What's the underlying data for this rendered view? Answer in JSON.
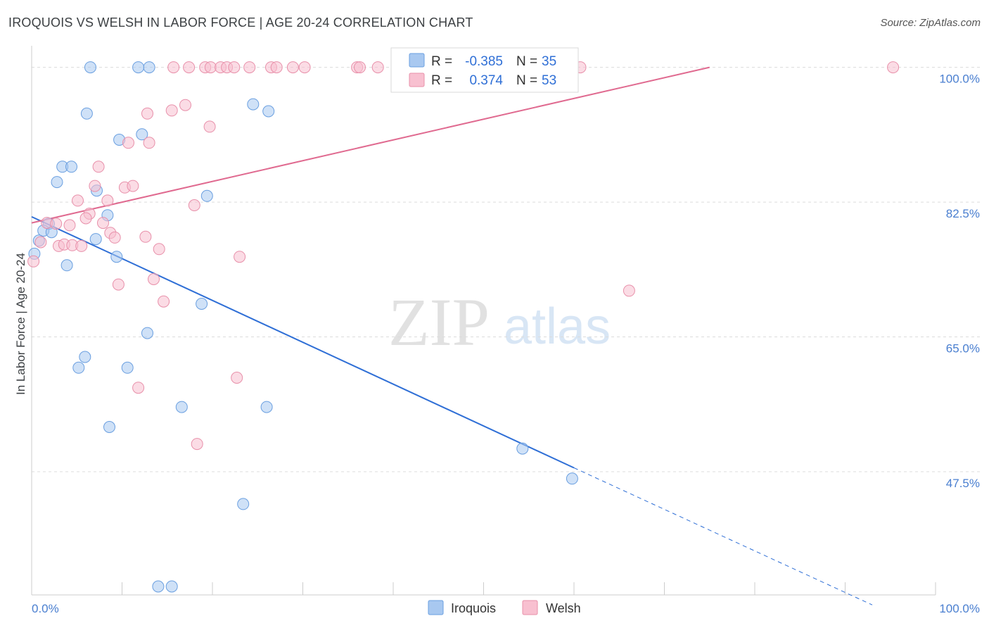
{
  "chart_data": {
    "type": "scatter",
    "title": "IROQUOIS VS WELSH IN LABOR FORCE | AGE 20-24 CORRELATION CHART",
    "source": "Source: ZipAtlas.com",
    "xlabel": "",
    "ylabel": "In Labor Force | Age 20-24",
    "xlim": [
      0,
      100
    ],
    "ylim": [
      31.5,
      102.8
    ],
    "x_tick_labels": [
      "0.0%",
      "100.0%"
    ],
    "y_ticks": [
      {
        "value": 100,
        "label": "100.0%"
      },
      {
        "value": 82.5,
        "label": "82.5%"
      },
      {
        "value": 65,
        "label": "65.0%"
      },
      {
        "value": 47.5,
        "label": "47.5%"
      }
    ],
    "legend_entries": [
      {
        "name": "Iroquois",
        "r_label": "R =",
        "r_value": "-0.385",
        "n_label": "N =",
        "n_value": "35"
      },
      {
        "name": "Welsh",
        "r_label": "R =",
        "r_value": "0.374",
        "n_label": "N =",
        "n_value": "53"
      }
    ],
    "series": [
      {
        "name": "Iroquois",
        "color": "#a8c8f0",
        "stroke": "#6a9fe0",
        "line_color": "#2f6fd6",
        "trend": {
          "x0": 0,
          "y0": 80.6,
          "x1": 60,
          "y1": 48.0,
          "dash_to_x": 93,
          "dash_to_y": 30.2
        },
        "points": [
          {
            "x": 6.5,
            "y": 100
          },
          {
            "x": 11.8,
            "y": 100
          },
          {
            "x": 13,
            "y": 100
          },
          {
            "x": 6.1,
            "y": 94
          },
          {
            "x": 24.5,
            "y": 95.2
          },
          {
            "x": 26.2,
            "y": 94.3
          },
          {
            "x": 9.7,
            "y": 90.6
          },
          {
            "x": 12.2,
            "y": 91.3
          },
          {
            "x": 3.4,
            "y": 87.1
          },
          {
            "x": 4.4,
            "y": 87.1
          },
          {
            "x": 2.8,
            "y": 85.1
          },
          {
            "x": 7.2,
            "y": 84.0
          },
          {
            "x": 19.4,
            "y": 83.3
          },
          {
            "x": 8.4,
            "y": 80.8
          },
          {
            "x": 1.9,
            "y": 79.7
          },
          {
            "x": 1.3,
            "y": 78.8
          },
          {
            "x": 2.2,
            "y": 78.6
          },
          {
            "x": 0.8,
            "y": 77.5
          },
          {
            "x": 7.1,
            "y": 77.7
          },
          {
            "x": 0.3,
            "y": 75.8
          },
          {
            "x": 9.4,
            "y": 75.4
          },
          {
            "x": 3.9,
            "y": 74.3
          },
          {
            "x": 18.8,
            "y": 69.3
          },
          {
            "x": 12.8,
            "y": 65.5
          },
          {
            "x": 5.9,
            "y": 62.4
          },
          {
            "x": 5.2,
            "y": 61.0
          },
          {
            "x": 10.6,
            "y": 61.0
          },
          {
            "x": 16.6,
            "y": 55.9
          },
          {
            "x": 26.0,
            "y": 55.9
          },
          {
            "x": 8.6,
            "y": 53.3
          },
          {
            "x": 54.3,
            "y": 50.5
          },
          {
            "x": 59.8,
            "y": 46.6
          },
          {
            "x": 23.4,
            "y": 43.3
          },
          {
            "x": 14.0,
            "y": 32.6
          },
          {
            "x": 15.5,
            "y": 32.6
          }
        ]
      },
      {
        "name": "Welsh",
        "color": "#f8c0d0",
        "stroke": "#e890aa",
        "line_color": "#e06a90",
        "trend": {
          "x0": 0,
          "y0": 79.8,
          "x1": 75,
          "y1": 100.0
        },
        "points": [
          {
            "x": 15.7,
            "y": 100
          },
          {
            "x": 17.4,
            "y": 100
          },
          {
            "x": 19.2,
            "y": 100
          },
          {
            "x": 19.8,
            "y": 100
          },
          {
            "x": 20.9,
            "y": 100
          },
          {
            "x": 21.6,
            "y": 100
          },
          {
            "x": 22.4,
            "y": 100
          },
          {
            "x": 24.1,
            "y": 100
          },
          {
            "x": 26.5,
            "y": 100
          },
          {
            "x": 27.1,
            "y": 100
          },
          {
            "x": 28.9,
            "y": 100
          },
          {
            "x": 30.2,
            "y": 100
          },
          {
            "x": 36.0,
            "y": 100
          },
          {
            "x": 36.3,
            "y": 100
          },
          {
            "x": 38.3,
            "y": 100
          },
          {
            "x": 60.7,
            "y": 100
          },
          {
            "x": 95.3,
            "y": 100
          },
          {
            "x": 17.0,
            "y": 95.1
          },
          {
            "x": 15.5,
            "y": 94.4
          },
          {
            "x": 12.8,
            "y": 94.0
          },
          {
            "x": 19.7,
            "y": 92.3
          },
          {
            "x": 10.7,
            "y": 90.2
          },
          {
            "x": 13.0,
            "y": 90.2
          },
          {
            "x": 7.4,
            "y": 87.1
          },
          {
            "x": 7.0,
            "y": 84.6
          },
          {
            "x": 10.3,
            "y": 84.4
          },
          {
            "x": 11.2,
            "y": 84.6
          },
          {
            "x": 5.1,
            "y": 82.7
          },
          {
            "x": 8.4,
            "y": 82.7
          },
          {
            "x": 18.0,
            "y": 82.1
          },
          {
            "x": 6.4,
            "y": 81.0
          },
          {
            "x": 6.0,
            "y": 80.4
          },
          {
            "x": 7.9,
            "y": 79.8
          },
          {
            "x": 1.7,
            "y": 79.8
          },
          {
            "x": 2.7,
            "y": 79.7
          },
          {
            "x": 4.2,
            "y": 79.5
          },
          {
            "x": 8.7,
            "y": 78.5
          },
          {
            "x": 9.2,
            "y": 77.9
          },
          {
            "x": 12.6,
            "y": 78.0
          },
          {
            "x": 1.0,
            "y": 77.3
          },
          {
            "x": 3.0,
            "y": 76.8
          },
          {
            "x": 3.6,
            "y": 77.0
          },
          {
            "x": 4.5,
            "y": 76.9
          },
          {
            "x": 5.5,
            "y": 76.8
          },
          {
            "x": 14.1,
            "y": 76.4
          },
          {
            "x": 23.0,
            "y": 75.4
          },
          {
            "x": 0.2,
            "y": 74.8
          },
          {
            "x": 9.6,
            "y": 71.8
          },
          {
            "x": 13.5,
            "y": 72.5
          },
          {
            "x": 14.6,
            "y": 69.6
          },
          {
            "x": 66.1,
            "y": 71.0
          },
          {
            "x": 22.7,
            "y": 59.7
          },
          {
            "x": 11.8,
            "y": 58.4
          },
          {
            "x": 18.3,
            "y": 51.1
          }
        ]
      }
    ]
  }
}
